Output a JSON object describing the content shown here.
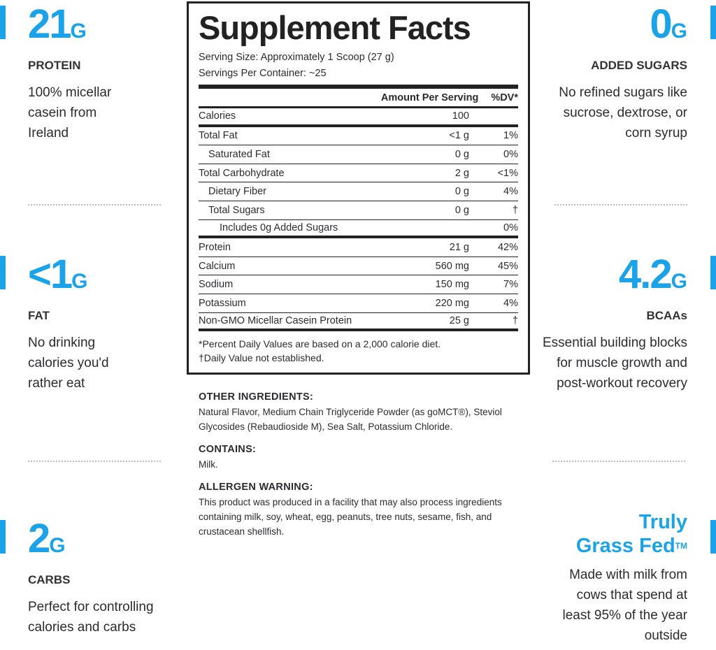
{
  "accent": "#1aa3e8",
  "left": [
    {
      "value": "21",
      "unit": "G",
      "label": "PROTEIN",
      "desc": "100% micellar casein from Ireland"
    },
    {
      "value": "<1",
      "unit": "G",
      "label": "FAT",
      "desc": "No drinking calories you'd rather eat"
    },
    {
      "value": "2",
      "unit": "G",
      "label": "CARBS",
      "desc": "Perfect for controlling calories and carbs"
    }
  ],
  "right": [
    {
      "value": "0",
      "unit": "G",
      "label": "ADDED SUGARS",
      "desc": "No refined sugars like sucrose, dextrose, or corn syrup"
    },
    {
      "value": "4.2",
      "unit": "G",
      "label": "BCAAs",
      "desc": "Essential building blocks for muscle growth and post-workout recovery"
    },
    {
      "line1": "Truly",
      "line2": "Grass Fed",
      "tm": "TM",
      "desc": "Made with milk from cows that spend at least 95% of the year outside"
    }
  ],
  "facts": {
    "title": "Supplement Facts",
    "serving_size": "Serving Size: Approximately 1 Scoop (27 g)",
    "servings": "Servings Per Container: ~25",
    "col_amount": "Amount Per Serving",
    "col_dv": "%DV*",
    "rows": [
      {
        "name": "Calories",
        "amount": "100",
        "dv": ""
      },
      {
        "name": "Total Fat",
        "amount": "<1 g",
        "dv": "1%"
      },
      {
        "name": "Saturated Fat",
        "amount": "0 g",
        "dv": "0%"
      },
      {
        "name": "Total Carbohydrate",
        "amount": "2 g",
        "dv": "<1%"
      },
      {
        "name": "Dietary Fiber",
        "amount": "0 g",
        "dv": "4%"
      },
      {
        "name": "Total Sugars",
        "amount": "0 g",
        "dv": "†"
      },
      {
        "name": "Includes 0g Added Sugars",
        "amount": "",
        "dv": "0%"
      },
      {
        "name": "Protein",
        "amount": "21 g",
        "dv": "42%"
      },
      {
        "name": "Calcium",
        "amount": "560 mg",
        "dv": "45%"
      },
      {
        "name": "Sodium",
        "amount": "150 mg",
        "dv": "7%"
      },
      {
        "name": "Potassium",
        "amount": "220 mg",
        "dv": "4%"
      },
      {
        "name": "Non-GMO Micellar Casein Protein",
        "amount": "25 g",
        "dv": "†"
      }
    ],
    "foot1": "*Percent Daily Values are based on a 2,000 calorie diet.",
    "foot2": "†Daily Value not established."
  },
  "ingredients": {
    "other_h": "OTHER INGREDIENTS:",
    "other": "Natural Flavor, Medium Chain Triglyceride Powder (as goMCT®), Steviol Glycosides (Rebaudioside M), Sea Salt, Potassium Chloride.",
    "contains_h": "CONTAINS:",
    "contains": "Milk.",
    "allergen_h": "ALLERGEN WARNING:",
    "allergen": "This product was produced in a facility that may also process ingredients containing milk, soy, wheat, egg, peanuts, tree nuts, sesame, fish, and crustacean shellfish."
  }
}
